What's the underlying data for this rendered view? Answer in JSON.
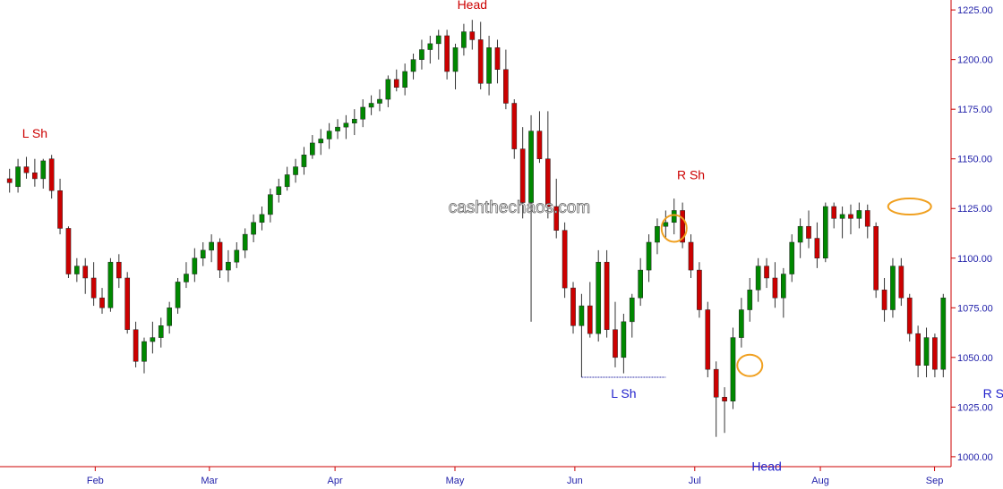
{
  "chart_data": {
    "type": "candlestick",
    "watermark": "cashthechaos.com",
    "ylim": [
      995,
      1230
    ],
    "y_ticks": [
      "1225.00",
      "1200.00",
      "1175.00",
      "1150.00",
      "1125.00",
      "1100.00",
      "1075.00",
      "1050.00",
      "1025.00",
      "1000.00"
    ],
    "x_ticks": [
      "Feb",
      "Mar",
      "Apr",
      "May",
      "Jun",
      "Jul",
      "Aug",
      "Sep"
    ],
    "colors": {
      "up": "#008800",
      "down": "#cc0000",
      "axis": "#cc0000",
      "tick_text": "#2222aa",
      "circle": "#f0a020",
      "support_line": "#3333aa"
    },
    "annotations_2010": [
      {
        "label": "L Sh",
        "near_value": 1158
      },
      {
        "label": "Head",
        "near_value": 1222
      },
      {
        "label": "R Sh",
        "near_value": 1137
      }
    ],
    "annotations_2010b": [
      {
        "label": "L Sh",
        "near_value": 1036
      },
      {
        "label": "Head",
        "near_value": 1002
      },
      {
        "label": "R Sh ?",
        "near_value": 1036
      }
    ],
    "candles_ohlc": [
      [
        1140,
        1145,
        1133,
        1138
      ],
      [
        1136,
        1150,
        1133,
        1146
      ],
      [
        1146,
        1151,
        1140,
        1143
      ],
      [
        1143,
        1150,
        1136,
        1140
      ],
      [
        1140,
        1150,
        1135,
        1149
      ],
      [
        1150,
        1152,
        1130,
        1134
      ],
      [
        1134,
        1140,
        1112,
        1115
      ],
      [
        1115,
        1116,
        1090,
        1092
      ],
      [
        1092,
        1100,
        1088,
        1096
      ],
      [
        1096,
        1100,
        1082,
        1090
      ],
      [
        1090,
        1098,
        1076,
        1080
      ],
      [
        1080,
        1085,
        1072,
        1075
      ],
      [
        1075,
        1100,
        1073,
        1098
      ],
      [
        1098,
        1102,
        1085,
        1090
      ],
      [
        1090,
        1093,
        1062,
        1064
      ],
      [
        1064,
        1068,
        1045,
        1048
      ],
      [
        1048,
        1060,
        1042,
        1058
      ],
      [
        1058,
        1068,
        1052,
        1060
      ],
      [
        1060,
        1070,
        1055,
        1066
      ],
      [
        1066,
        1078,
        1062,
        1075
      ],
      [
        1075,
        1090,
        1072,
        1088
      ],
      [
        1088,
        1098,
        1085,
        1092
      ],
      [
        1092,
        1105,
        1088,
        1100
      ],
      [
        1100,
        1108,
        1096,
        1104
      ],
      [
        1104,
        1112,
        1098,
        1108
      ],
      [
        1108,
        1110,
        1090,
        1094
      ],
      [
        1094,
        1104,
        1088,
        1098
      ],
      [
        1098,
        1108,
        1095,
        1104
      ],
      [
        1104,
        1115,
        1100,
        1112
      ],
      [
        1112,
        1122,
        1108,
        1118
      ],
      [
        1118,
        1126,
        1114,
        1122
      ],
      [
        1122,
        1135,
        1118,
        1132
      ],
      [
        1132,
        1140,
        1128,
        1136
      ],
      [
        1136,
        1146,
        1134,
        1142
      ],
      [
        1142,
        1150,
        1138,
        1146
      ],
      [
        1146,
        1156,
        1142,
        1152
      ],
      [
        1152,
        1162,
        1150,
        1158
      ],
      [
        1158,
        1165,
        1152,
        1160
      ],
      [
        1160,
        1168,
        1155,
        1164
      ],
      [
        1164,
        1170,
        1160,
        1166
      ],
      [
        1166,
        1172,
        1160,
        1168
      ],
      [
        1168,
        1175,
        1162,
        1170
      ],
      [
        1170,
        1180,
        1166,
        1176
      ],
      [
        1176,
        1182,
        1172,
        1178
      ],
      [
        1178,
        1185,
        1174,
        1180
      ],
      [
        1180,
        1192,
        1176,
        1190
      ],
      [
        1190,
        1195,
        1184,
        1186
      ],
      [
        1186,
        1198,
        1182,
        1194
      ],
      [
        1194,
        1203,
        1190,
        1200
      ],
      [
        1200,
        1210,
        1195,
        1205
      ],
      [
        1205,
        1212,
        1198,
        1208
      ],
      [
        1208,
        1215,
        1200,
        1212
      ],
      [
        1212,
        1215,
        1190,
        1194
      ],
      [
        1194,
        1208,
        1185,
        1206
      ],
      [
        1206,
        1218,
        1202,
        1214
      ],
      [
        1214,
        1220,
        1205,
        1210
      ],
      [
        1210,
        1219,
        1185,
        1188
      ],
      [
        1188,
        1212,
        1182,
        1206
      ],
      [
        1206,
        1210,
        1188,
        1195
      ],
      [
        1195,
        1205,
        1175,
        1178
      ],
      [
        1178,
        1180,
        1150,
        1155
      ],
      [
        1155,
        1166,
        1120,
        1128
      ],
      [
        1128,
        1172,
        1068,
        1164
      ],
      [
        1164,
        1174,
        1148,
        1150
      ],
      [
        1150,
        1174,
        1120,
        1126
      ],
      [
        1126,
        1140,
        1110,
        1114
      ],
      [
        1114,
        1118,
        1080,
        1085
      ],
      [
        1085,
        1088,
        1062,
        1066
      ],
      [
        1066,
        1082,
        1040,
        1076
      ],
      [
        1076,
        1088,
        1060,
        1062
      ],
      [
        1062,
        1104,
        1058,
        1098
      ],
      [
        1098,
        1104,
        1060,
        1064
      ],
      [
        1064,
        1078,
        1045,
        1050
      ],
      [
        1050,
        1072,
        1042,
        1068
      ],
      [
        1068,
        1082,
        1060,
        1080
      ],
      [
        1080,
        1100,
        1076,
        1094
      ],
      [
        1094,
        1112,
        1088,
        1108
      ],
      [
        1108,
        1120,
        1102,
        1116
      ],
      [
        1116,
        1124,
        1110,
        1118
      ],
      [
        1118,
        1130,
        1112,
        1124
      ],
      [
        1124,
        1128,
        1105,
        1108
      ],
      [
        1108,
        1112,
        1090,
        1094
      ],
      [
        1094,
        1098,
        1070,
        1074
      ],
      [
        1074,
        1078,
        1040,
        1044
      ],
      [
        1044,
        1048,
        1010,
        1030
      ],
      [
        1030,
        1035,
        1012,
        1028
      ],
      [
        1028,
        1065,
        1024,
        1060
      ],
      [
        1060,
        1080,
        1055,
        1074
      ],
      [
        1074,
        1090,
        1068,
        1084
      ],
      [
        1084,
        1100,
        1078,
        1096
      ],
      [
        1096,
        1100,
        1085,
        1090
      ],
      [
        1090,
        1098,
        1075,
        1080
      ],
      [
        1080,
        1095,
        1070,
        1092
      ],
      [
        1092,
        1112,
        1088,
        1108
      ],
      [
        1108,
        1120,
        1100,
        1116
      ],
      [
        1116,
        1124,
        1105,
        1110
      ],
      [
        1110,
        1118,
        1095,
        1100
      ],
      [
        1100,
        1128,
        1098,
        1126
      ],
      [
        1126,
        1128,
        1115,
        1120
      ],
      [
        1120,
        1126,
        1110,
        1122
      ],
      [
        1122,
        1127,
        1112,
        1120
      ],
      [
        1120,
        1128,
        1115,
        1124
      ],
      [
        1124,
        1127,
        1110,
        1116
      ],
      [
        1116,
        1118,
        1080,
        1084
      ],
      [
        1084,
        1090,
        1068,
        1074
      ],
      [
        1074,
        1100,
        1070,
        1096
      ],
      [
        1096,
        1100,
        1076,
        1080
      ],
      [
        1080,
        1082,
        1058,
        1062
      ],
      [
        1062,
        1066,
        1040,
        1046
      ],
      [
        1046,
        1065,
        1040,
        1060
      ],
      [
        1060,
        1062,
        1040,
        1044
      ],
      [
        1044,
        1082,
        1040,
        1080
      ]
    ]
  }
}
